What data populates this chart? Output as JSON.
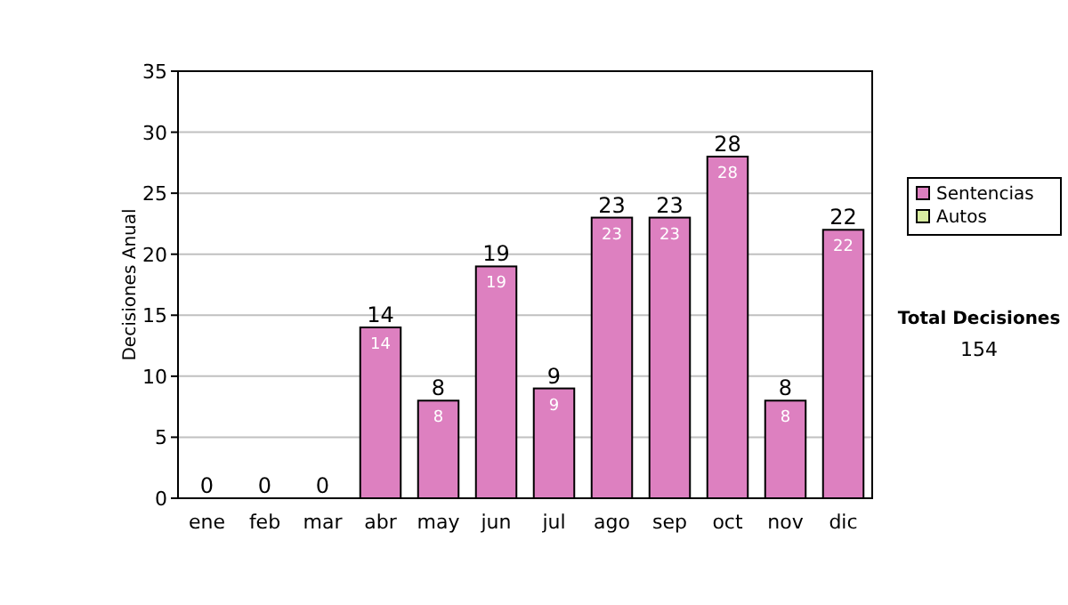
{
  "chart_data": {
    "type": "bar",
    "stacked": true,
    "ylabel": "Decisiones Anual",
    "categories": [
      "ene",
      "feb",
      "mar",
      "abr",
      "may",
      "jun",
      "jul",
      "ago",
      "sep",
      "oct",
      "nov",
      "dic"
    ],
    "series": [
      {
        "name": "Sentencias",
        "color": "#dd80c0",
        "values": [
          0,
          0,
          0,
          14,
          8,
          19,
          9,
          23,
          23,
          28,
          8,
          22
        ],
        "value_labels": [
          null,
          null,
          null,
          "14",
          "8",
          "19",
          "9",
          "23",
          "23",
          "28",
          "8",
          "22"
        ]
      },
      {
        "name": "Autos",
        "color": "#d8eca0",
        "values": [
          0,
          0,
          0,
          0,
          0,
          0,
          0,
          0,
          0,
          0,
          0,
          0
        ]
      }
    ],
    "totals": [
      "0",
      "0",
      "0",
      "14",
      "8",
      "19",
      "9",
      "23",
      "23",
      "28",
      "8",
      "22"
    ],
    "ylim": [
      0,
      35
    ],
    "yticks": [
      0,
      5,
      10,
      15,
      20,
      25,
      30,
      35
    ],
    "grid": "y",
    "legend": "right",
    "annotations": [
      "Total Decisiones",
      "154"
    ]
  }
}
